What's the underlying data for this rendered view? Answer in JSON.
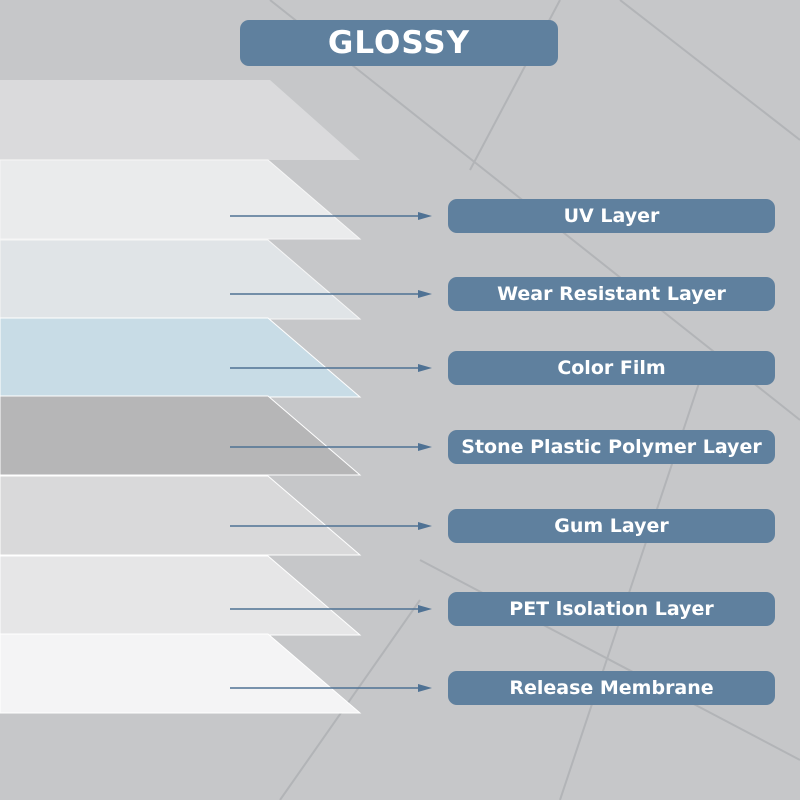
{
  "title": "GLOSSY",
  "accent_color": "#5f809e",
  "layers": [
    {
      "label": "UV Layer",
      "color": "#f1f2f3"
    },
    {
      "label": "Wear Resistant Layer",
      "color": "#e5eaed"
    },
    {
      "label": "Color Film",
      "color": "#c8dce6"
    },
    {
      "label": "Stone Plastic Polymer Layer",
      "color": "#b6b6b7"
    },
    {
      "label": "Gum Layer",
      "color": "#d9d9da"
    },
    {
      "label": "PET lsolation Layer",
      "color": "#e6e6e7"
    },
    {
      "label": "Release Membrane",
      "color": "#f4f4f5"
    }
  ]
}
